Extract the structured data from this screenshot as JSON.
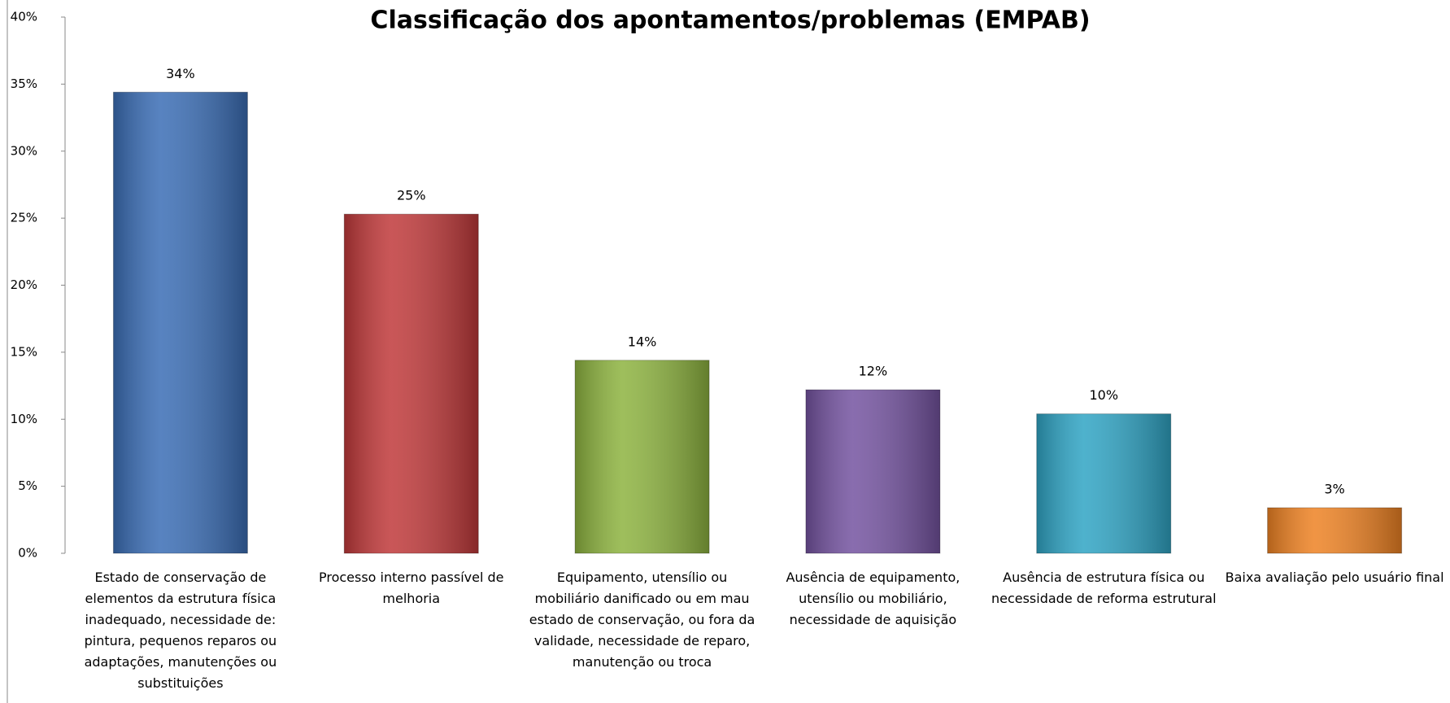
{
  "chart_data": {
    "type": "bar",
    "title": "Classificação dos apontamentos/problemas (EMPAB)",
    "categories": [
      "Estado de conservação de elementos da estrutura física inadequado, necessidade de: pintura, pequenos reparos ou adaptações, manutenções ou substituições",
      "Processo interno passível de melhoria",
      "Equipamento, utensílio ou mobiliário danificado ou em mau estado de conservação, ou fora da validade, necessidade de reparo, manutenção ou troca",
      "Ausência de equipamento, utensílio ou mobiliário, necessidade de aquisição",
      "Ausência de estrutura física ou necessidade de reforma estrutural",
      "Baixa avaliação pelo usuário final"
    ],
    "values": [
      34.4,
      25.3,
      14.4,
      12.2,
      10.4,
      3.4
    ],
    "value_labels": [
      "34%",
      "25%",
      "14%",
      "12%",
      "10%",
      "3%"
    ],
    "colors": [
      "#3a6db5",
      "#c0393a",
      "#8db33f",
      "#7453a0",
      "#2fa4c4",
      "#ee8223"
    ],
    "ylim": [
      0,
      40
    ],
    "yticks": [
      {
        "value": 0,
        "label": "0%"
      },
      {
        "value": 5,
        "label": "5%"
      },
      {
        "value": 10,
        "label": "10%"
      },
      {
        "value": 15,
        "label": "15%"
      },
      {
        "value": 20,
        "label": "20%"
      },
      {
        "value": 25,
        "label": "25%"
      },
      {
        "value": 30,
        "label": "30%"
      },
      {
        "value": 35,
        "label": "35%"
      },
      {
        "value": 40,
        "label": "40%"
      }
    ],
    "grid": false
  }
}
